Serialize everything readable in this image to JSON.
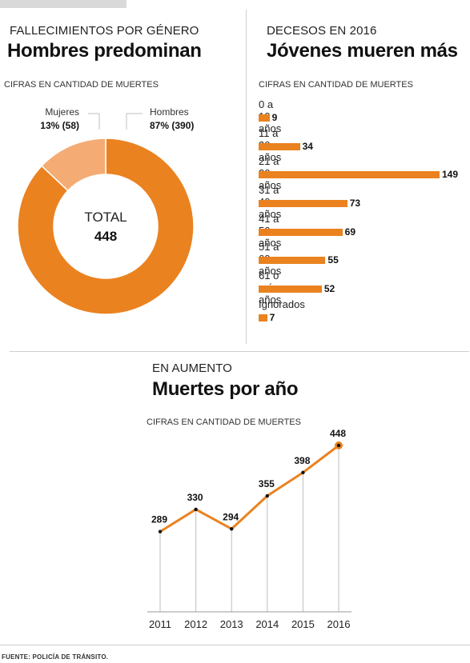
{
  "colors": {
    "orange": "#ea8220",
    "light_orange": "#f4ac74",
    "gray_line": "#bfbfbf"
  },
  "gender_section": {
    "kicker": "FALLECIMIENTOS POR GÉNERO",
    "headline": "Hombres predominan",
    "note": "CIFRAS EN CANTIDAD DE MUERTES"
  },
  "age_section": {
    "kicker": "DECESOS EN 2016",
    "headline": "Jóvenes mueren más",
    "note": "CIFRAS EN CANTIDAD DE MUERTES"
  },
  "year_section": {
    "kicker": "EN AUMENTO",
    "headline": "Muertes por año",
    "note": "CIFRAS EN CANTIDAD DE MUERTES"
  },
  "source": "FUENTE: POLICÍA DE TRÁNSITO.",
  "chart_data": [
    {
      "type": "pie",
      "style": "donut",
      "center_label": "TOTAL",
      "center_value": "448",
      "slices": [
        {
          "label": "Hombres",
          "value": 390,
          "display": "87% (390)",
          "color": "#ea8220"
        },
        {
          "label": "Mujeres",
          "value": 58,
          "display": "13% (58)",
          "color": "#f4ac74"
        }
      ]
    },
    {
      "type": "bar",
      "orientation": "horizontal",
      "categories": [
        "0 a 10 años",
        "11 a 20  años",
        "21 a 30 años",
        "31 a 40 años",
        "41 a 50 años",
        "51 a 60  años",
        "61 o más años",
        "Ignorados"
      ],
      "values": [
        9,
        34,
        149,
        73,
        69,
        55,
        52,
        7
      ],
      "xlim": [
        0,
        149
      ]
    },
    {
      "type": "line",
      "x": [
        "2011",
        "2012",
        "2013",
        "2014",
        "2015",
        "2016"
      ],
      "values": [
        289,
        330,
        294,
        355,
        398,
        448
      ],
      "ylim": [
        265,
        448
      ],
      "grid": false
    }
  ]
}
